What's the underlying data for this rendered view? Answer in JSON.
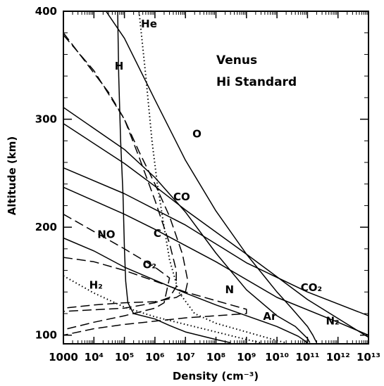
{
  "chart_data": {
    "type": "line",
    "title": "",
    "annotation_lines": [
      "Venus",
      "Hi Standard"
    ],
    "xlabel": "Density (cm⁻³)",
    "ylabel": "Altitude (km)",
    "x_scale": "log",
    "xlim": [
      1000,
      10000000000000
    ],
    "ylim": [
      92,
      400
    ],
    "x_ticks": [
      {
        "value": 1000,
        "label": "1000"
      },
      {
        "value": 10000,
        "label": "10⁴"
      },
      {
        "value": 100000,
        "label": "10⁵"
      },
      {
        "value": 1000000,
        "label": "10⁶"
      },
      {
        "value": 10000000,
        "label": "10⁷"
      },
      {
        "value": 100000000,
        "label": "10⁸"
      },
      {
        "value": 1000000000,
        "label": "10⁹"
      },
      {
        "value": 10000000000,
        "label": "10¹⁰"
      },
      {
        "value": 100000000000,
        "label": "10¹¹"
      },
      {
        "value": 1000000000000,
        "label": "10¹²"
      },
      {
        "value": 10000000000000,
        "label": "10¹³"
      }
    ],
    "y_ticks": [
      {
        "value": 100,
        "label": "100"
      },
      {
        "value": 200,
        "label": "200"
      },
      {
        "value": 300,
        "label": "300"
      },
      {
        "value": 400,
        "label": "400"
      }
    ],
    "series": [
      {
        "name": "CO₂",
        "style": "solid",
        "points": [
          [
            1000,
            255
          ],
          [
            100000,
            231
          ],
          [
            10000000,
            202
          ],
          [
            1000000000,
            167
          ],
          [
            100000000000,
            140
          ],
          [
            10000000000000,
            118
          ]
        ]
      },
      {
        "name": "CO",
        "style": "solid",
        "points": [
          [
            1000,
            296
          ],
          [
            100000,
            259
          ],
          [
            1000000,
            238
          ],
          [
            10000000,
            216
          ],
          [
            1000000000,
            175
          ],
          [
            100000000000,
            133
          ],
          [
            10000000000000,
            98
          ]
        ]
      },
      {
        "name": "N₂",
        "style": "solid",
        "points": [
          [
            1000,
            237
          ],
          [
            100000,
            212
          ],
          [
            1000000,
            198
          ],
          [
            100000000,
            168
          ],
          [
            10000000000,
            135
          ],
          [
            1000000000000,
            112
          ],
          [
            10000000000000,
            100
          ]
        ]
      },
      {
        "name": "O",
        "style": "solid",
        "points": [
          [
            25000,
            400
          ],
          [
            100000,
            375
          ],
          [
            1000000,
            318
          ],
          [
            10000000,
            262
          ],
          [
            100000000,
            215
          ],
          [
            1000000000,
            175
          ],
          [
            10000000000,
            140
          ],
          [
            30000000000,
            125
          ],
          [
            100000000000,
            108
          ],
          [
            150000000000,
            100
          ],
          [
            200000000000,
            93
          ]
        ]
      },
      {
        "name": "N",
        "style": "solid",
        "points": [
          [
            1000,
            311
          ],
          [
            100000,
            272
          ],
          [
            1000000,
            246
          ],
          [
            10000000,
            214
          ],
          [
            100000000,
            176
          ],
          [
            1000000000,
            142
          ],
          [
            10000000000,
            118
          ],
          [
            40000000000,
            108
          ],
          [
            100000000000,
            97
          ],
          [
            120000000000,
            93
          ]
        ]
      },
      {
        "name": "Ar",
        "style": "solid",
        "points": [
          [
            1000,
            190
          ],
          [
            10000,
            178
          ],
          [
            100000,
            163
          ],
          [
            1000000,
            151
          ],
          [
            10000000,
            139
          ],
          [
            100000000,
            128
          ],
          [
            1000000000,
            118
          ],
          [
            10000000000,
            108
          ],
          [
            50000000000,
            99
          ],
          [
            100000000000,
            93
          ]
        ]
      },
      {
        "name": "He",
        "style": "solid",
        "points": [
          [
            60000,
            400
          ],
          [
            65000,
            340
          ],
          [
            75000,
            280
          ],
          [
            90000,
            230
          ],
          [
            100000,
            180
          ],
          [
            110000,
            150
          ],
          [
            130000,
            130
          ],
          [
            200000,
            120
          ],
          [
            1000000,
            115
          ],
          [
            3000000,
            109
          ],
          [
            10000000,
            103
          ],
          [
            100000000,
            96
          ],
          [
            300000000,
            93
          ]
        ]
      },
      {
        "name": "He",
        "style": "dotted",
        "points": [
          [
            300000,
            400
          ],
          [
            500000,
            340
          ],
          [
            800000,
            280
          ],
          [
            1200000,
            240
          ],
          [
            2000000,
            200
          ],
          [
            3000000,
            170
          ],
          [
            6000000,
            140
          ],
          [
            20000000,
            120
          ],
          [
            100000000,
            111
          ],
          [
            1000000000,
            103
          ],
          [
            10000000000,
            95
          ],
          [
            20000000000,
            93
          ]
        ]
      },
      {
        "name": "H₂",
        "style": "dotted",
        "points": [
          [
            1000,
            155
          ],
          [
            10000,
            139
          ],
          [
            100000,
            126
          ],
          [
            1000000,
            117
          ],
          [
            10000000,
            110
          ],
          [
            100000000,
            103
          ],
          [
            1000000000,
            96
          ],
          [
            3000000000,
            93
          ]
        ]
      },
      {
        "name": "H",
        "style": "dashed",
        "points": [
          [
            1000,
            380
          ],
          [
            30000,
            325
          ],
          [
            100000,
            300
          ],
          [
            300000,
            265
          ],
          [
            1000000,
            225
          ],
          [
            3000000,
            185
          ],
          [
            5000000,
            160
          ],
          [
            5000000,
            145
          ],
          [
            3000000,
            135
          ],
          [
            1000000,
            130
          ],
          [
            100000,
            125
          ],
          [
            1000,
            122
          ]
        ]
      },
      {
        "name": "C",
        "style": "dashed",
        "points": [
          [
            1000,
            378
          ],
          [
            10000,
            345
          ],
          [
            100000,
            300
          ],
          [
            300000,
            270
          ],
          [
            1000000,
            240
          ],
          [
            3000000,
            210
          ],
          [
            8000000,
            175
          ],
          [
            12000000,
            150
          ],
          [
            10000000,
            140
          ],
          [
            5000000,
            135
          ],
          [
            1000000,
            131
          ],
          [
            100000,
            130
          ],
          [
            10000,
            128
          ],
          [
            1000,
            125
          ]
        ]
      },
      {
        "name": "NO",
        "style": "dashed",
        "points": [
          [
            1000,
            212
          ],
          [
            10000,
            196
          ],
          [
            100000,
            180
          ],
          [
            1000000,
            163
          ],
          [
            3000000,
            153
          ],
          [
            2000000,
            130
          ],
          [
            1000000,
            125
          ],
          [
            100000,
            118
          ],
          [
            10000,
            112
          ],
          [
            1000,
            105
          ]
        ]
      },
      {
        "name": "O₂",
        "style": "dashed",
        "points": [
          [
            1000,
            172
          ],
          [
            10000,
            168
          ],
          [
            100000,
            160
          ],
          [
            1000000,
            150
          ],
          [
            10000000,
            140
          ],
          [
            100000000,
            132
          ],
          [
            1000000000,
            124
          ],
          [
            1000000000,
            120
          ],
          [
            100000000,
            118
          ],
          [
            10000000,
            116
          ],
          [
            1000000,
            113
          ],
          [
            100000,
            110
          ],
          [
            10000,
            106
          ],
          [
            1000,
            100
          ]
        ]
      }
    ],
    "curve_labels": [
      {
        "text": "He",
        "x": 350000,
        "y": 385
      },
      {
        "text": "H",
        "x": 48000,
        "y": 346
      },
      {
        "text": "O",
        "x": 17000000,
        "y": 283
      },
      {
        "text": "CO",
        "x": 4000000,
        "y": 225
      },
      {
        "text": "C",
        "x": 900000,
        "y": 191
      },
      {
        "text": "NO",
        "x": 13000,
        "y": 190
      },
      {
        "text": "O₂",
        "x": 400000,
        "y": 162
      },
      {
        "text": "H₂",
        "x": 7000,
        "y": 143
      },
      {
        "text": "N",
        "x": 200000000,
        "y": 139
      },
      {
        "text": "Ar",
        "x": 3500000000,
        "y": 114
      },
      {
        "text": "CO₂",
        "x": 60000000000,
        "y": 141
      },
      {
        "text": "N₂",
        "x": 400000000000,
        "y": 110
      }
    ],
    "grid": false
  }
}
